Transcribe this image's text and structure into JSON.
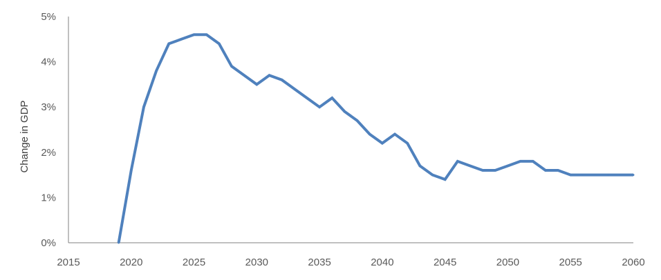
{
  "chart_data": {
    "type": "line",
    "title": "",
    "xlabel": "",
    "ylabel": "Change in GDP",
    "xlim": [
      2015,
      2060
    ],
    "ylim": [
      0,
      5
    ],
    "grid": false,
    "legend": "none",
    "x_ticks": [
      "2015",
      "2020",
      "2025",
      "2030",
      "2035",
      "2040",
      "2045",
      "2050",
      "2055",
      "2060"
    ],
    "y_ticks": [
      "0%",
      "1%",
      "2%",
      "3%",
      "4%",
      "5%"
    ],
    "series": [
      {
        "color": "#4f81bd",
        "points": [
          [
            2019,
            0.0
          ],
          [
            2020,
            1.6
          ],
          [
            2021,
            3.0
          ],
          [
            2022,
            3.8
          ],
          [
            2023,
            4.4
          ],
          [
            2024,
            4.5
          ],
          [
            2025,
            4.6
          ],
          [
            2026,
            4.6
          ],
          [
            2027,
            4.4
          ],
          [
            2028,
            3.9
          ],
          [
            2029,
            3.7
          ],
          [
            2030,
            3.5
          ],
          [
            2031,
            3.7
          ],
          [
            2032,
            3.6
          ],
          [
            2033,
            3.4
          ],
          [
            2034,
            3.2
          ],
          [
            2035,
            3.0
          ],
          [
            2036,
            3.2
          ],
          [
            2037,
            2.9
          ],
          [
            2038,
            2.7
          ],
          [
            2039,
            2.4
          ],
          [
            2040,
            2.2
          ],
          [
            2041,
            2.4
          ],
          [
            2042,
            2.2
          ],
          [
            2043,
            1.7
          ],
          [
            2044,
            1.5
          ],
          [
            2045,
            1.4
          ],
          [
            2046,
            1.8
          ],
          [
            2047,
            1.7
          ],
          [
            2048,
            1.6
          ],
          [
            2049,
            1.6
          ],
          [
            2050,
            1.7
          ],
          [
            2051,
            1.8
          ],
          [
            2052,
            1.8
          ],
          [
            2053,
            1.6
          ],
          [
            2054,
            1.6
          ],
          [
            2055,
            1.5
          ],
          [
            2056,
            1.5
          ],
          [
            2057,
            1.5
          ],
          [
            2058,
            1.5
          ],
          [
            2059,
            1.5
          ],
          [
            2060,
            1.5
          ]
        ]
      }
    ]
  }
}
